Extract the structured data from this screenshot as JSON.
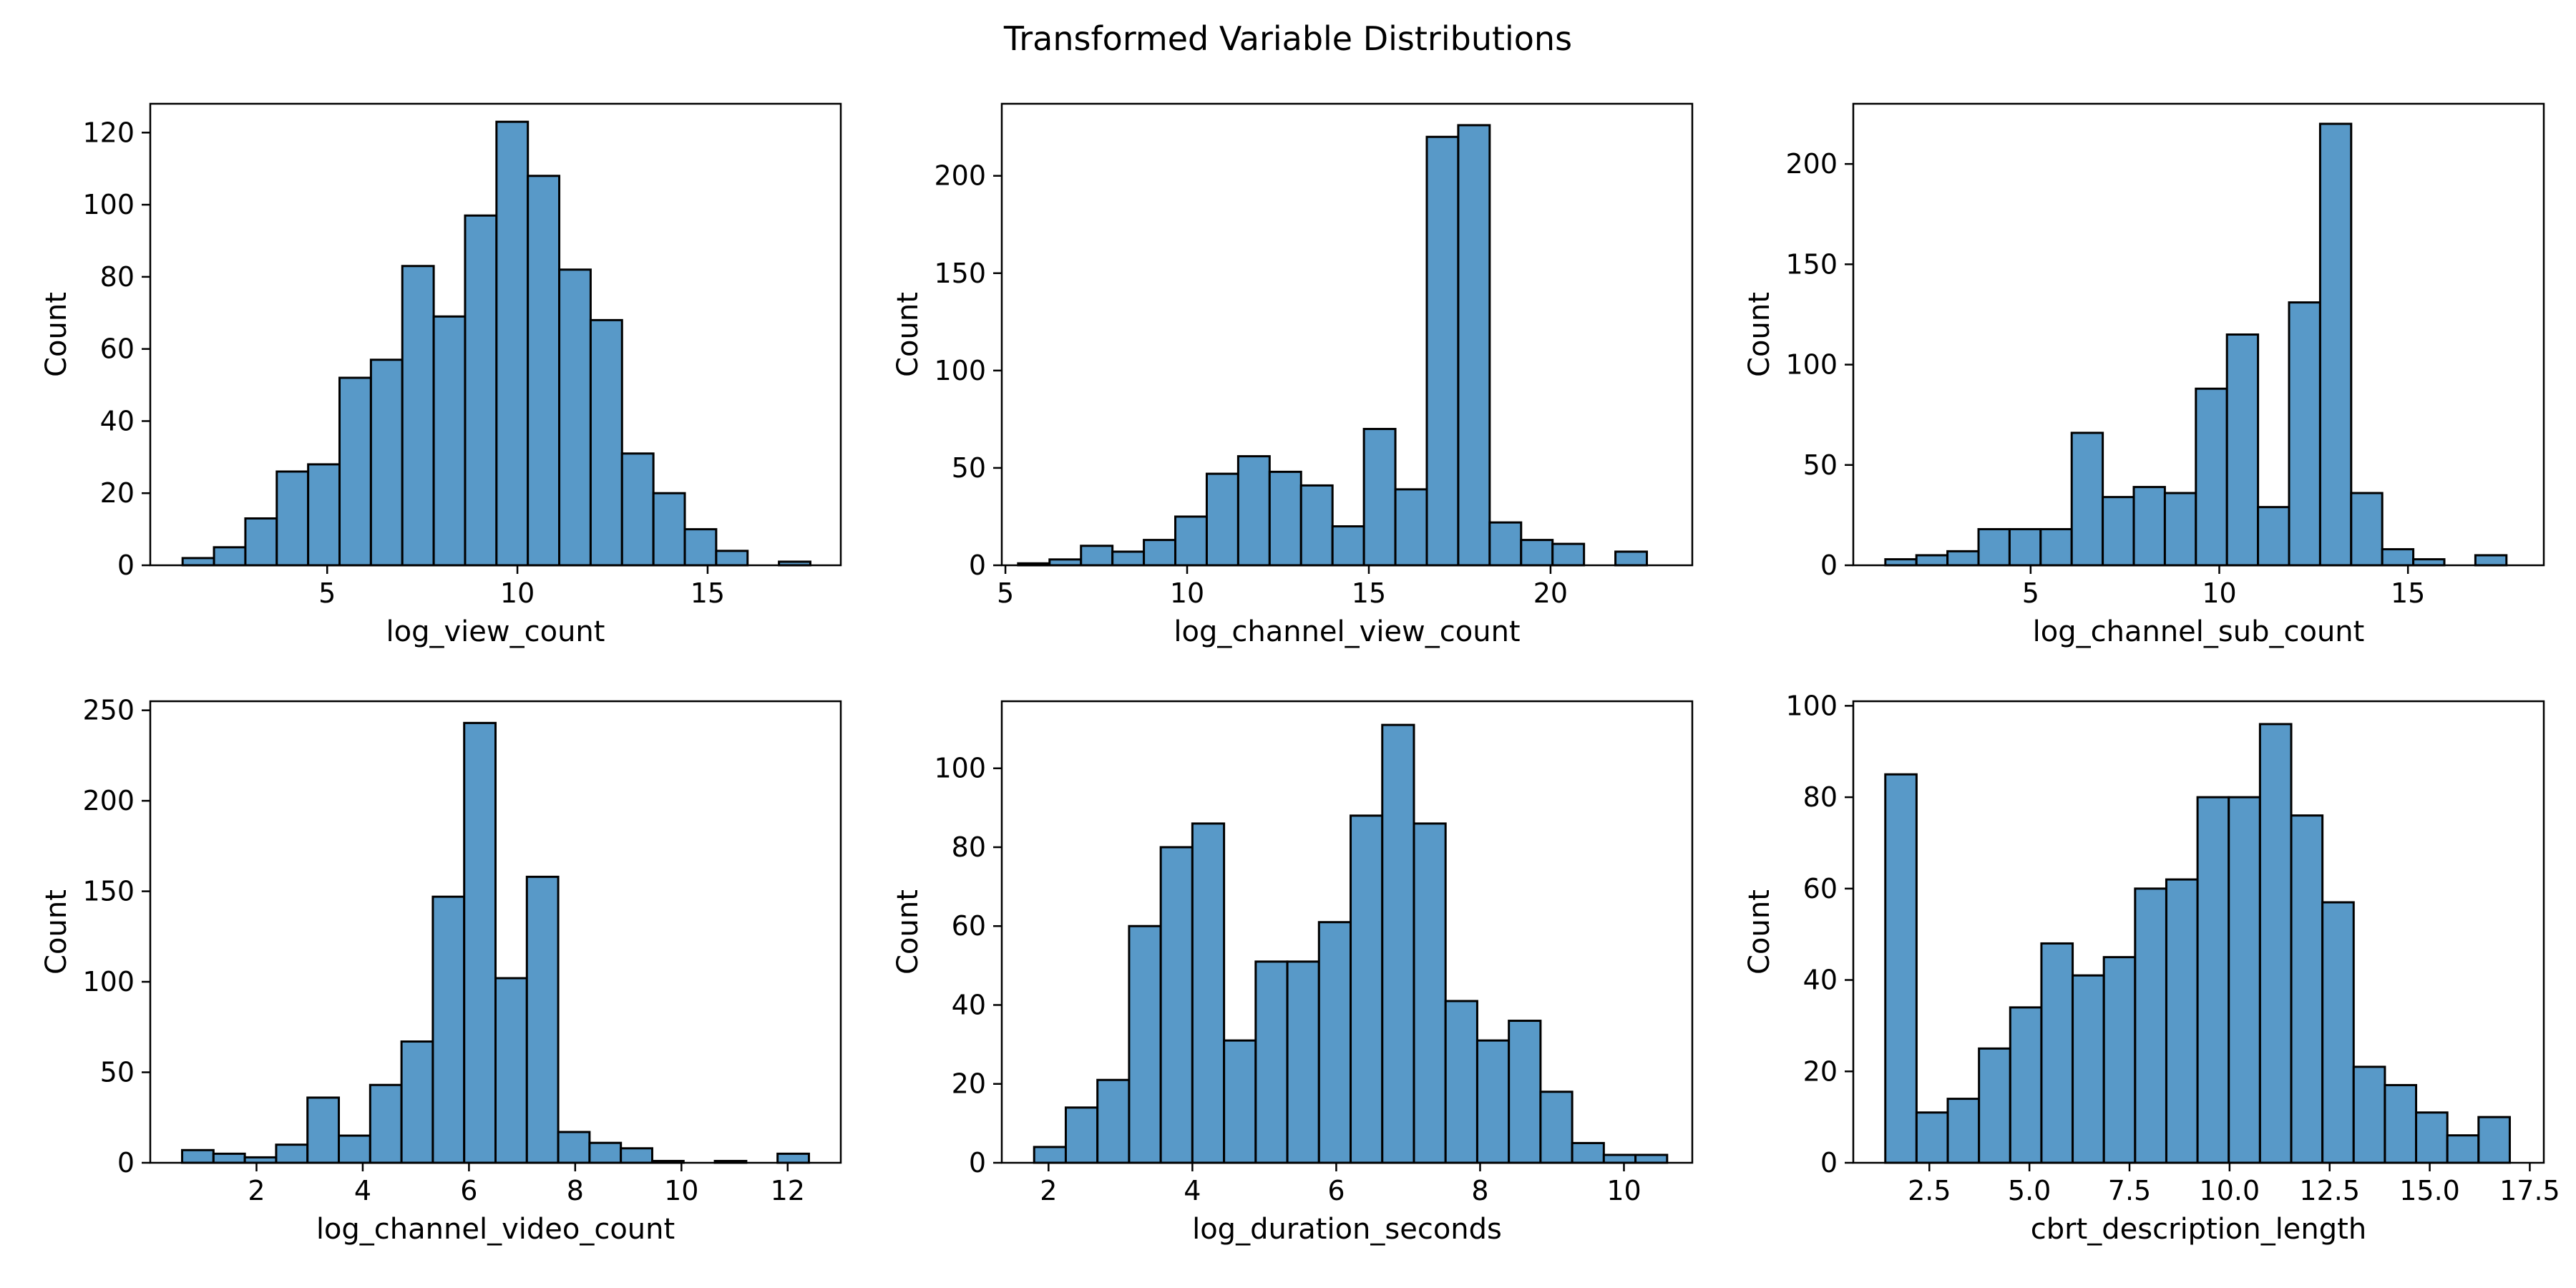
{
  "suptitle": "Transformed Variable Distributions",
  "style": {
    "bar_fill": "#5899c8",
    "bar_edge": "#000000"
  },
  "chart_data": [
    {
      "type": "bar",
      "subtype": "histogram",
      "xlabel": "log_view_count",
      "ylabel": "Count",
      "xlim": [
        0.35,
        18.5
      ],
      "ylim": [
        0,
        128
      ],
      "xticks": [
        5,
        10,
        15
      ],
      "yticks": [
        0,
        20,
        40,
        60,
        80,
        100,
        120
      ],
      "bin_start": 1.2,
      "bin_width": 0.825,
      "values": [
        2,
        5,
        13,
        26,
        28,
        52,
        57,
        83,
        69,
        97,
        123,
        108,
        82,
        68,
        31,
        20,
        10,
        4,
        0,
        1
      ],
      "grid": false
    },
    {
      "type": "bar",
      "subtype": "histogram",
      "xlabel": "log_channel_view_count",
      "ylabel": "Count",
      "xlim": [
        4.9,
        23.9
      ],
      "ylim": [
        0,
        237
      ],
      "xticks": [
        5,
        10,
        15,
        20
      ],
      "yticks": [
        0,
        50,
        100,
        150,
        200
      ],
      "bin_start": 5.35,
      "bin_width": 0.865,
      "values": [
        1,
        3,
        10,
        7,
        13,
        25,
        47,
        56,
        48,
        41,
        20,
        70,
        39,
        220,
        226,
        22,
        13,
        11,
        0,
        7
      ],
      "grid": false
    },
    {
      "type": "bar",
      "subtype": "histogram",
      "xlabel": "log_channel_sub_count",
      "ylabel": "Count",
      "xlim": [
        0.3,
        18.6
      ],
      "ylim": [
        0,
        230
      ],
      "xticks": [
        5,
        10,
        15
      ],
      "yticks": [
        0,
        50,
        100,
        150,
        200
      ],
      "bin_start": 1.15,
      "bin_width": 0.823,
      "values": [
        3,
        5,
        7,
        18,
        18,
        18,
        66,
        34,
        39,
        36,
        88,
        115,
        29,
        131,
        220,
        36,
        8,
        3,
        0,
        5
      ],
      "grid": false
    },
    {
      "type": "bar",
      "subtype": "histogram",
      "xlabel": "log_channel_video_count",
      "ylabel": "Count",
      "xlim": [
        0.0,
        13.0
      ],
      "ylim": [
        0,
        255
      ],
      "xticks": [
        2,
        4,
        6,
        8,
        10,
        12
      ],
      "yticks": [
        0,
        50,
        100,
        150,
        200,
        250
      ],
      "bin_start": 0.6,
      "bin_width": 0.59,
      "values": [
        7,
        5,
        3,
        10,
        36,
        15,
        43,
        67,
        147,
        243,
        102,
        158,
        17,
        11,
        8,
        1,
        0,
        1,
        0,
        5
      ],
      "grid": false
    },
    {
      "type": "bar",
      "subtype": "histogram",
      "xlabel": "log_duration_seconds",
      "ylabel": "Count",
      "xlim": [
        1.35,
        10.95
      ],
      "ylim": [
        0,
        117
      ],
      "xticks": [
        2,
        4,
        6,
        8,
        10
      ],
      "yticks": [
        0,
        20,
        40,
        60,
        80,
        100
      ],
      "bin_start": 1.8,
      "bin_width": 0.44,
      "values": [
        4,
        14,
        21,
        60,
        80,
        86,
        31,
        51,
        51,
        61,
        88,
        111,
        86,
        41,
        31,
        36,
        18,
        5,
        2,
        2
      ],
      "grid": false
    },
    {
      "type": "bar",
      "subtype": "histogram",
      "xlabel": "cbrt_description_length",
      "ylabel": "Count",
      "xlim": [
        0.6,
        17.85
      ],
      "ylim": [
        0,
        101
      ],
      "xticks": [
        2.5,
        5.0,
        7.5,
        10.0,
        12.5,
        15.0,
        17.5
      ],
      "yticks": [
        0,
        20,
        40,
        60,
        80,
        100
      ],
      "bin_start": 1.4,
      "bin_width": 0.78,
      "values": [
        85,
        11,
        14,
        25,
        34,
        48,
        41,
        45,
        60,
        62,
        80,
        80,
        96,
        76,
        57,
        21,
        17,
        11,
        6,
        10
      ],
      "grid": false
    }
  ]
}
